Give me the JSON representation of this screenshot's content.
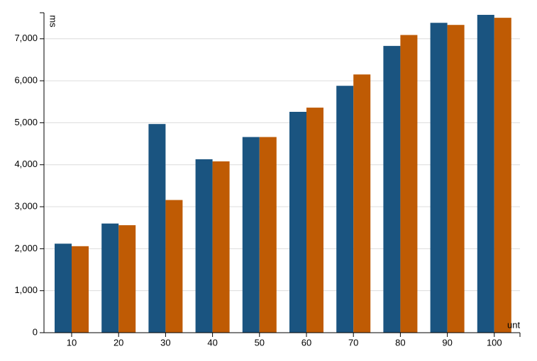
{
  "chart_data": {
    "type": "bar",
    "y_label": "ms",
    "x_label": "unt",
    "categories": [
      "10",
      "20",
      "30",
      "40",
      "50",
      "60",
      "70",
      "80",
      "90",
      "100"
    ],
    "series": [
      {
        "color": "#1a5480",
        "values": [
          2120,
          2600,
          4970,
          4130,
          4660,
          5260,
          5880,
          6830,
          7380,
          7570
        ]
      },
      {
        "color": "#bf5b04",
        "values": [
          2060,
          2560,
          3160,
          4080,
          4660,
          5360,
          6150,
          7090,
          7330,
          7500
        ]
      }
    ],
    "ylim": [
      0,
      7620
    ],
    "yticks": [
      0,
      {
        "value": 1000,
        "label": "1,000"
      },
      {
        "value": 2000,
        "label": "2,000"
      },
      {
        "value": 3000,
        "label": "3,000"
      },
      {
        "value": 4000,
        "label": "4,000"
      },
      {
        "value": 5000,
        "label": "5,000"
      },
      {
        "value": 6000,
        "label": "6,000"
      },
      {
        "value": 7000,
        "label": "7,000"
      }
    ],
    "grid": true
  }
}
